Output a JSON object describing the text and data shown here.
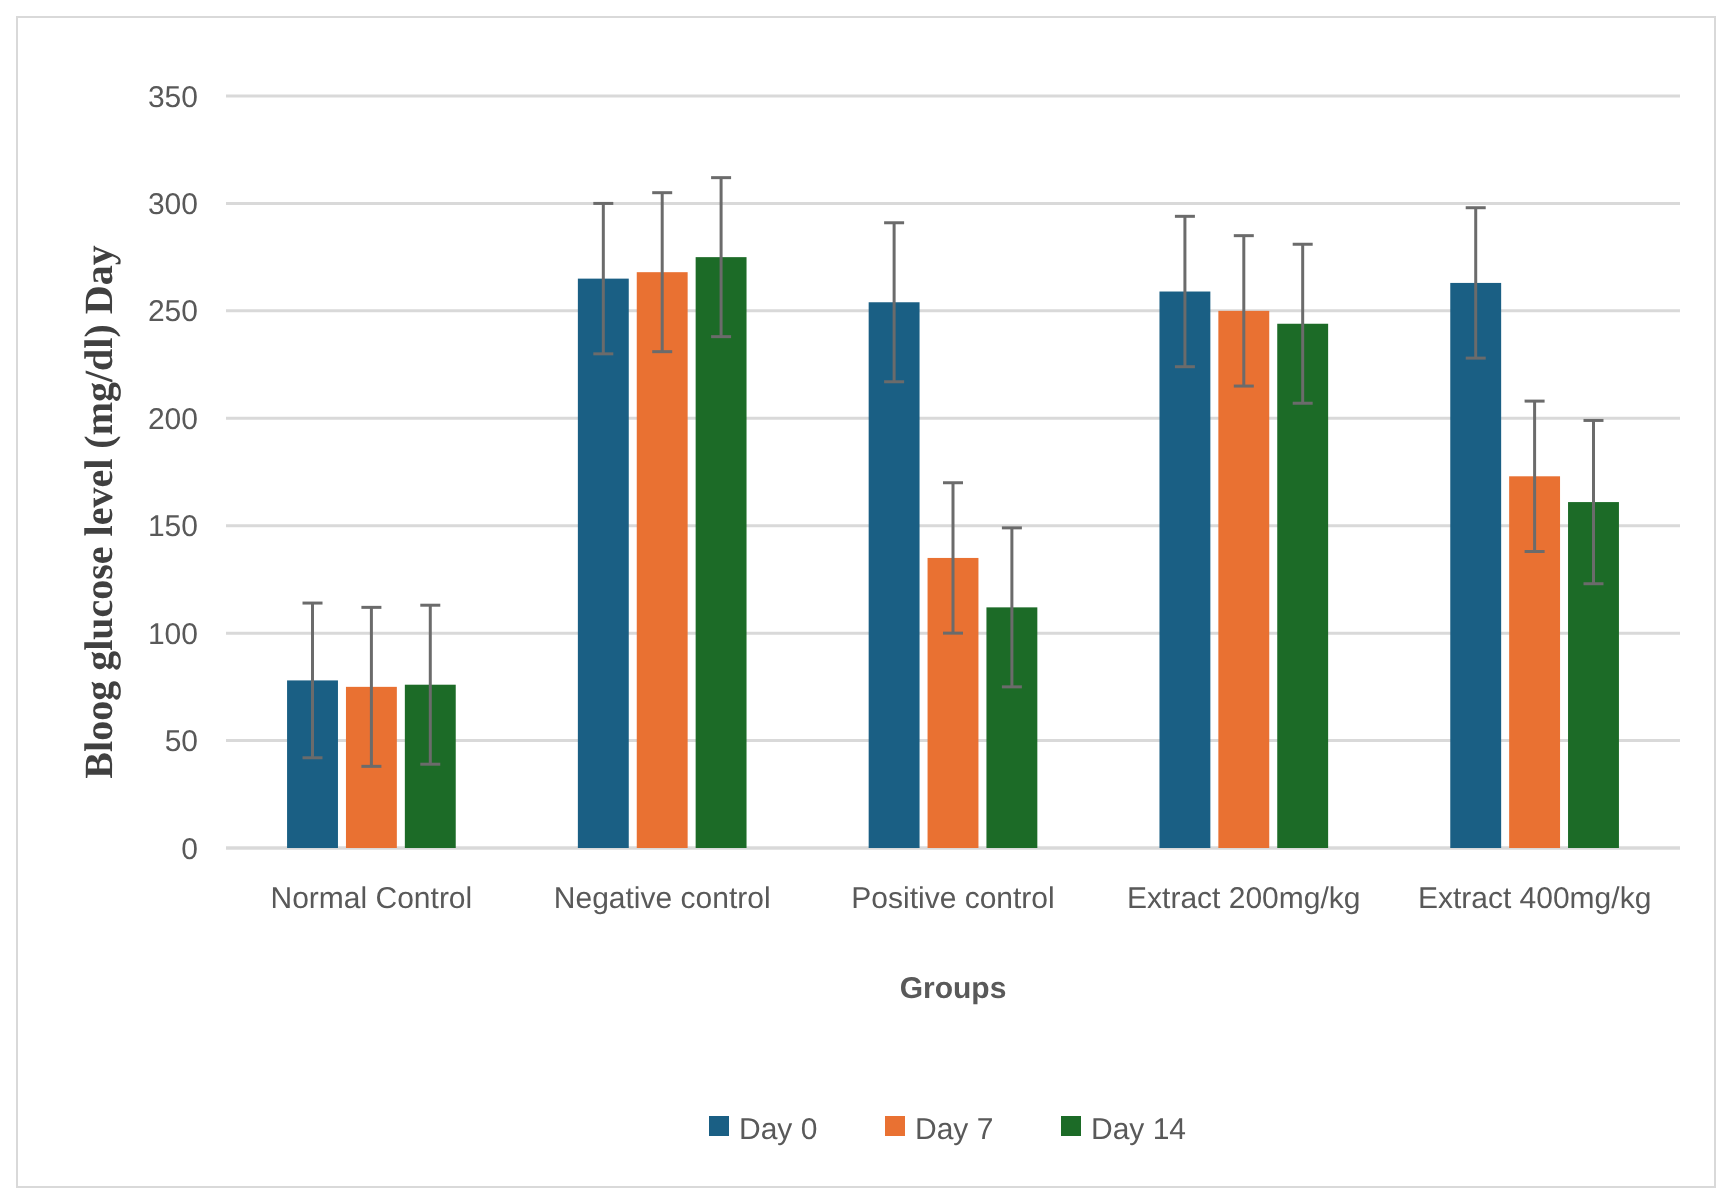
{
  "chart_data": {
    "type": "bar",
    "xlabel": "Groups",
    "ylabel": "Bloog glucose level (mg/dl) Day",
    "categories": [
      "Normal Control",
      "Negative control",
      "Positive control",
      "Extract 200mg/kg",
      "Extract 400mg/kg"
    ],
    "series": [
      {
        "name": "Day 0",
        "color": "#1a5f84",
        "values": [
          78,
          265,
          254,
          259,
          263
        ],
        "errors": [
          36,
          35,
          37,
          35,
          35
        ]
      },
      {
        "name": "Day 7",
        "color": "#e97132",
        "values": [
          75,
          268,
          135,
          250,
          173
        ],
        "errors": [
          37,
          37,
          35,
          35,
          35
        ]
      },
      {
        "name": "Day 14",
        "color": "#1c6b27",
        "values": [
          76,
          275,
          112,
          244,
          161
        ],
        "errors": [
          37,
          37,
          37,
          37,
          38
        ]
      }
    ],
    "ylim": [
      0,
      350
    ],
    "yticks": [
      0,
      50,
      100,
      150,
      200,
      250,
      300,
      350
    ],
    "grid": "y",
    "legend": "bottom"
  }
}
